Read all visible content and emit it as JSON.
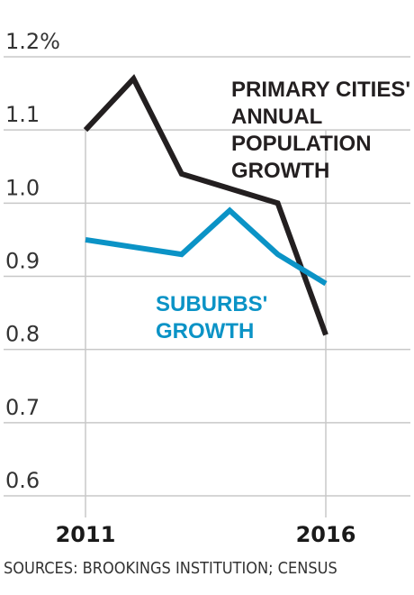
{
  "source_note": "SOURCES: BROOKINGS INSTITUTION; CENSUS",
  "colors": {
    "primary": "#231f20",
    "suburbs": "#0b93c6",
    "grid": "#c8c8c8"
  },
  "chart_data": {
    "type": "line",
    "x": [
      2011,
      2012,
      2013,
      2014,
      2015,
      2016
    ],
    "xticks": [
      2011,
      2016
    ],
    "xtick_labels": [
      "2011",
      "2016"
    ],
    "ylim": [
      0.6,
      1.2
    ],
    "yticks": [
      0.6,
      0.7,
      0.8,
      0.9,
      1.0,
      1.1,
      1.2
    ],
    "ytick_labels": [
      "0.6",
      "0.7",
      "0.8",
      "0.9",
      "1.0",
      "1.1",
      "1.2%"
    ],
    "grid": true,
    "series": [
      {
        "name": "PRIMARY CITIES' ANNUAL POPULATION GROWTH",
        "label_lines": [
          "PRIMARY CITIES'",
          "ANNUAL",
          "POPULATION",
          "GROWTH"
        ],
        "color": "#231f20",
        "values": [
          1.1,
          1.17,
          1.04,
          1.02,
          1.0,
          0.82
        ]
      },
      {
        "name": "SUBURBS' GROWTH",
        "label_lines": [
          "SUBURBS'",
          "GROWTH"
        ],
        "color": "#0b93c6",
        "values": [
          0.95,
          0.94,
          0.93,
          0.99,
          0.93,
          0.89
        ]
      }
    ]
  }
}
